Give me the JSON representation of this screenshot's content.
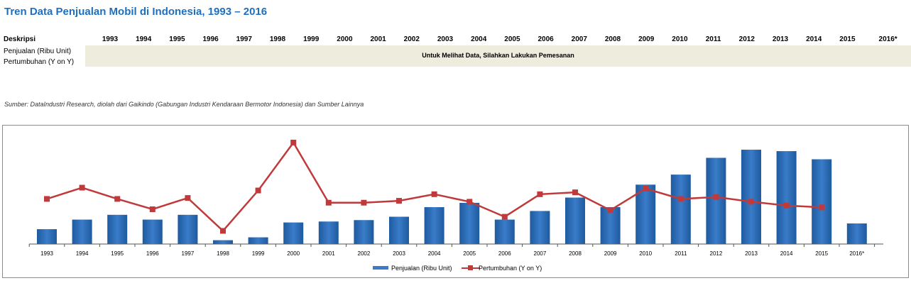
{
  "title": "Tren Data Penjualan Mobil di Indonesia, 1993 – 2016",
  "table": {
    "desc_header": "Deskripsi",
    "years": [
      "1993",
      "1994",
      "1995",
      "1996",
      "1997",
      "1998",
      "1999",
      "2000",
      "2001",
      "2002",
      "2003",
      "2004",
      "2005",
      "2006",
      "2007",
      "2008",
      "2009",
      "2010",
      "2011",
      "2012",
      "2013",
      "2014",
      "2015",
      "2016*"
    ],
    "row1_label": "Penjualan (Ribu Unit)",
    "row2_label": "Pertumbuhan (Y on Y)",
    "notice": "Untuk Melihat Data, Silahkan Lakukan Pemesanan"
  },
  "source": "Sumber: DataIndustri Research, diolah dari Gaikindo (Gabungan Industri Kendaraan Bermotor Indonesia) dan Sumber Lainnya",
  "colors": {
    "bar": "#3a7cc9",
    "bar_dark": "#1e5a9e",
    "line": "#c0393b",
    "title": "#1f6fbf"
  },
  "chart_data": {
    "type": "bar",
    "categories": [
      "1993",
      "1994",
      "1995",
      "1996",
      "1997",
      "1998",
      "1999",
      "2000",
      "2001",
      "2002",
      "2003",
      "2004",
      "2005",
      "2006",
      "2007",
      "2008",
      "2009",
      "2010",
      "2011",
      "2012",
      "2013",
      "2014",
      "2015",
      "2016*"
    ],
    "series": [
      {
        "name": "Penjualan (Ribu Unit)",
        "type": "bar",
        "values": [
          155,
          255,
          305,
          255,
          305,
          40,
          70,
          225,
          235,
          250,
          285,
          385,
          430,
          255,
          345,
          485,
          385,
          620,
          725,
          900,
          985,
          970,
          885,
          215
        ]
      },
      {
        "name": "Pertumbuhan (Y on Y)",
        "type": "line",
        "values": [
          0.48,
          0.6,
          0.48,
          0.37,
          0.49,
          0.14,
          0.57,
          1.08,
          0.44,
          0.44,
          0.46,
          0.53,
          0.45,
          0.29,
          0.53,
          0.55,
          0.36,
          0.59,
          0.48,
          0.5,
          0.45,
          0.41,
          0.39,
          null
        ]
      }
    ],
    "legend": "bottom",
    "grid": false
  }
}
